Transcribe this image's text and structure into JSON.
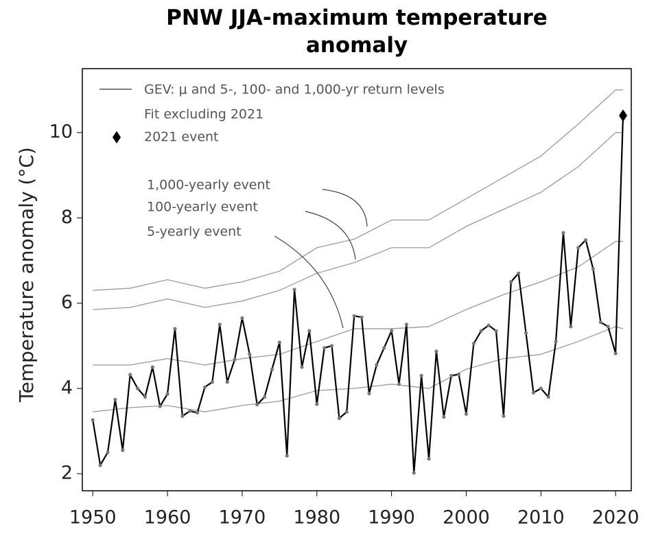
{
  "chart_data": {
    "type": "line",
    "title": "PNW JJA-maximum temperature anomaly",
    "y_label": "Temperature anomaly (°C)",
    "legend_lines": [
      "GEV: μ and 5-, 100- and 1,000-yr return levels",
      "Fit excluding 2021",
      "2021 event"
    ],
    "xlim": [
      1948.6,
      2022.1
    ],
    "xticks": [
      1950,
      1960,
      1970,
      1980,
      1990,
      2000,
      2010,
      2020
    ],
    "ylim": [
      1.6,
      11.5
    ],
    "yticks": [
      2,
      4,
      6,
      8,
      10
    ],
    "observed": {
      "color": "#000000",
      "x": [
        1950,
        1951,
        1952,
        1953,
        1954,
        1955,
        1956,
        1957,
        1958,
        1959,
        1960,
        1961,
        1962,
        1963,
        1964,
        1965,
        1966,
        1967,
        1968,
        1969,
        1970,
        1971,
        1972,
        1973,
        1974,
        1975,
        1976,
        1977,
        1978,
        1979,
        1980,
        1981,
        1982,
        1983,
        1984,
        1985,
        1986,
        1987,
        1988,
        1989,
        1990,
        1991,
        1992,
        1993,
        1994,
        1995,
        1996,
        1997,
        1998,
        1999,
        2000,
        2001,
        2002,
        2003,
        2004,
        2005,
        2006,
        2007,
        2008,
        2009,
        2010,
        2011,
        2012,
        2013,
        2014,
        2015,
        2016,
        2017,
        2018,
        2019,
        2020,
        2021
      ],
      "values": [
        3.26,
        2.2,
        2.5,
        3.74,
        2.55,
        4.32,
        4.0,
        3.8,
        4.5,
        3.58,
        3.87,
        5.4,
        3.35,
        3.47,
        3.43,
        4.03,
        4.15,
        5.5,
        4.15,
        4.68,
        5.65,
        4.8,
        3.62,
        3.8,
        4.45,
        5.08,
        2.42,
        6.32,
        4.5,
        5.35,
        3.63,
        4.95,
        5.0,
        3.3,
        3.45,
        5.7,
        5.67,
        3.88,
        4.55,
        4.95,
        5.35,
        4.1,
        5.5,
        2.02,
        4.3,
        2.35,
        4.87,
        3.33,
        4.3,
        4.33,
        3.4,
        5.05,
        5.35,
        5.48,
        5.35,
        3.35,
        6.5,
        6.7,
        5.3,
        3.9,
        4.0,
        3.8,
        5.1,
        7.65,
        5.45,
        7.3,
        7.48,
        6.8,
        5.55,
        5.45,
        4.82,
        10.4
      ]
    },
    "series": [
      {
        "color": "#999999",
        "values": [
          3.45,
          3.55,
          3.6,
          3.45,
          3.6,
          3.7,
          3.95,
          4.0,
          4.1,
          4.0,
          4.45,
          4.7,
          4.8,
          5.1,
          5.45,
          5.4
        ]
      },
      {
        "name": "5-yearly event",
        "color": "#999999",
        "values": [
          4.55,
          4.55,
          4.7,
          4.55,
          4.7,
          4.8,
          5.1,
          5.4,
          5.4,
          5.45,
          5.85,
          6.2,
          6.5,
          6.85,
          7.45,
          7.45
        ]
      },
      {
        "name": "100-yearly event",
        "color": "#999999",
        "values": [
          5.85,
          5.9,
          6.1,
          5.9,
          6.05,
          6.3,
          6.7,
          6.95,
          7.3,
          7.3,
          7.8,
          8.2,
          8.6,
          9.2,
          10.0,
          10.0
        ]
      },
      {
        "name": "1,000-yearly event",
        "color": "#999999",
        "values": [
          6.3,
          6.35,
          6.55,
          6.35,
          6.5,
          6.75,
          7.3,
          7.5,
          7.95,
          7.95,
          8.45,
          8.95,
          9.45,
          10.2,
          11.0,
          11.0
        ]
      }
    ],
    "x": [
      1950,
      1955,
      1960,
      1965,
      1970,
      1975,
      1980,
      1985,
      1990,
      1995,
      2000,
      2005,
      2010,
      2015,
      2020,
      2021
    ]
  }
}
